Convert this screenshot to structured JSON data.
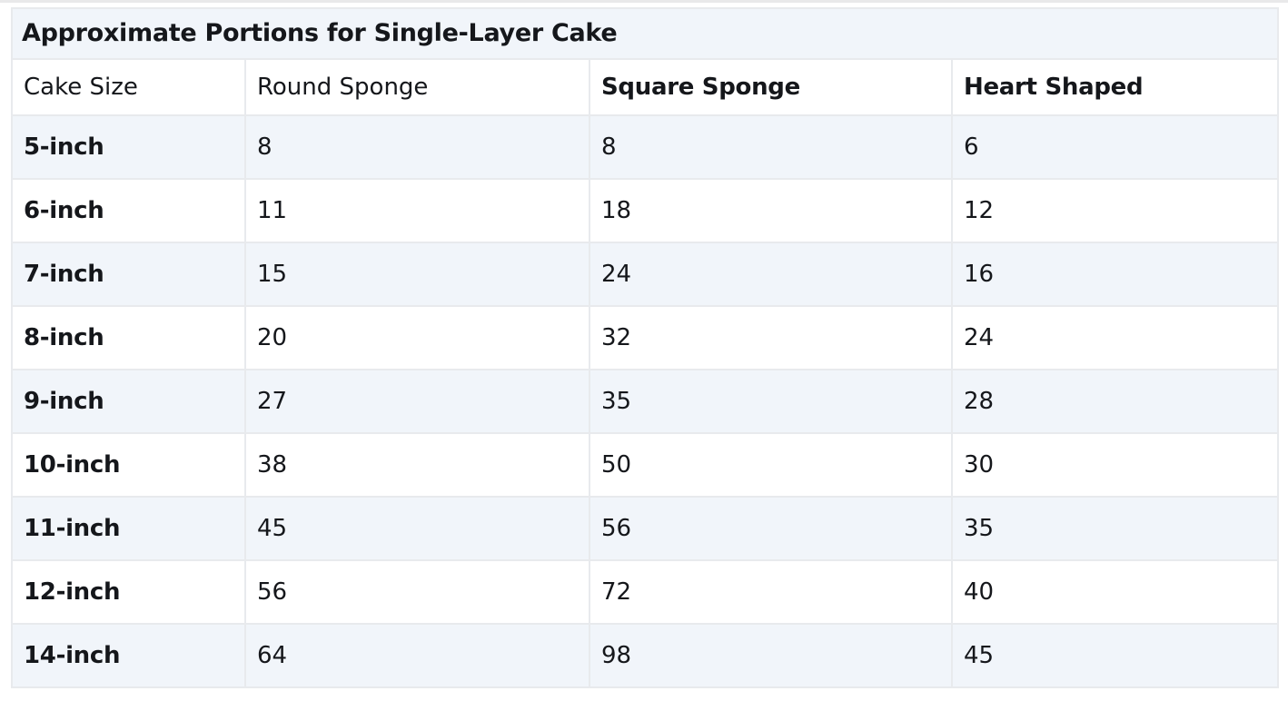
{
  "table": {
    "title": "Approximate Portions for Single-Layer Cake",
    "columns": [
      "Cake Size",
      "Round Sponge",
      "Square Sponge",
      "Heart Shaped"
    ],
    "column_header_bold": [
      false,
      false,
      true,
      true
    ],
    "rows": [
      [
        "5-inch",
        "8",
        "8",
        "6"
      ],
      [
        "6-inch",
        "11",
        "18",
        "12"
      ],
      [
        "7-inch",
        "15",
        "24",
        "16"
      ],
      [
        "8-inch",
        "20",
        "32",
        "24"
      ],
      [
        "9-inch",
        "27",
        "35",
        "28"
      ],
      [
        "10-inch",
        "38",
        "50",
        "30"
      ],
      [
        "11-inch",
        "45",
        "56",
        "35"
      ],
      [
        "12-inch",
        "56",
        "72",
        "40"
      ],
      [
        "14-inch",
        "64",
        "98",
        "45"
      ]
    ]
  },
  "colors": {
    "stripe_background": "#f1f5fa",
    "cell_border": "#e8eaed",
    "top_rule": "#e9e9ea",
    "text": "#15171b"
  }
}
